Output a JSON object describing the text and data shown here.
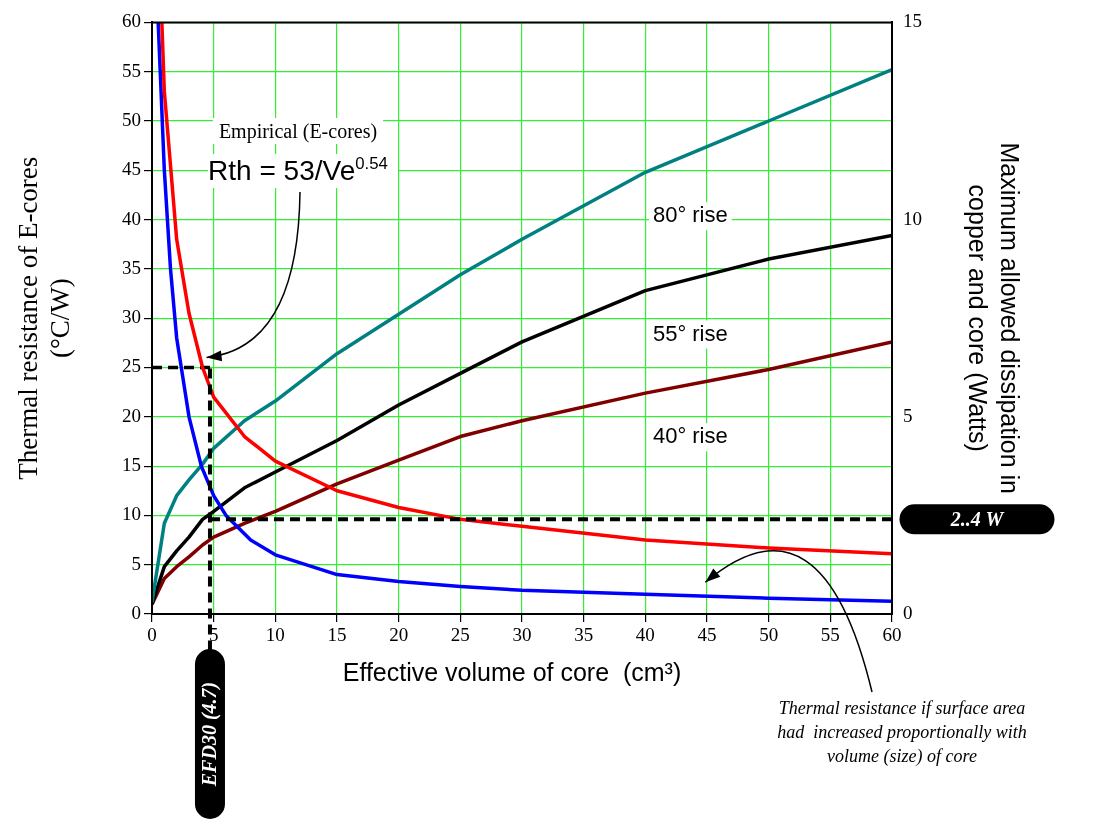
{
  "chart_data": {
    "type": "line",
    "xlabel": "Effective volume of core  (cm³)",
    "ylabel": "Thermal resistance of E-cores\n(°C/W)",
    "y2label": "Maximum allowed dissipation in\ncopper and core (Watts)",
    "x": [
      0,
      1,
      2,
      3,
      4.1,
      5,
      7.5,
      10,
      15,
      20,
      25,
      30,
      40,
      50,
      60
    ],
    "series": [
      {
        "color": "#ff0000",
        "x": [
          0.8,
          1,
          2,
          3,
          4.1,
          5,
          7.5,
          10,
          15,
          20,
          25,
          30,
          40,
          50,
          60
        ],
        "values": [
          60,
          53,
          38,
          30.5,
          25,
          22,
          18,
          15.5,
          12.5,
          10.8,
          9.6,
          8.9,
          7.5,
          6.7,
          6.1
        ]
      },
      {
        "color": "#0000ff",
        "x": [
          0.5,
          1,
          1.5,
          2,
          3,
          4,
          5,
          6,
          8,
          10,
          15,
          20,
          25,
          30,
          40,
          50,
          60
        ],
        "values": [
          60,
          45,
          35,
          28,
          20,
          15,
          12,
          10,
          7.5,
          6,
          4,
          3.3,
          2.8,
          2.4,
          2,
          1.6,
          1.3
        ]
      },
      {
        "name": "80° rise",
        "color": "#008080",
        "axis": "y2",
        "values": [
          0.3,
          2.3,
          3,
          3.4,
          3.8,
          4.2,
          4.9,
          5.4,
          6.6,
          7.6,
          8.6,
          9.5,
          11.2,
          12.5,
          13.8
        ]
      },
      {
        "name": "55° rise",
        "color": "#000000",
        "axis": "y2",
        "values": [
          0.25,
          1.2,
          1.6,
          1.95,
          2.4,
          2.6,
          3.2,
          3.6,
          4.4,
          5.3,
          6.1,
          6.9,
          8.2,
          9,
          9.6
        ]
      },
      {
        "name": "40° rise",
        "color": "#800000",
        "axis": "y2",
        "values": [
          0.25,
          0.9,
          1.2,
          1.45,
          1.75,
          1.95,
          2.3,
          2.6,
          3.3,
          3.9,
          4.5,
          4.9,
          5.6,
          6.2,
          6.9
        ]
      },
      {
        "color": "#000000",
        "x": [
          0,
          4.7
        ],
        "values": [
          25,
          25
        ],
        "line_style": "dashed"
      }
    ],
    "xlim": [
      0,
      60
    ],
    "xticks": [
      0,
      5,
      10,
      15,
      20,
      25,
      30,
      35,
      40,
      45,
      50,
      55,
      60
    ],
    "ylim": [
      0,
      60
    ],
    "yticks": [
      0,
      5,
      10,
      15,
      20,
      25,
      30,
      35,
      40,
      45,
      50,
      55,
      60
    ],
    "y2lim": [
      0,
      15
    ],
    "y2ticks": [
      0,
      5,
      10,
      15
    ],
    "grid": true,
    "marker": "none",
    "line_style": "solid",
    "ref_lines": [
      {
        "axis": "x",
        "value": 4.7,
        "label": "EFD30 (4.7)"
      },
      {
        "axis": "y2",
        "value": 2.4,
        "label": "2..4 W"
      }
    ],
    "annotations": [
      "Empirical (E-cores)",
      "Rth = 53/Ve$^{0.54}$",
      "Thermal resistance if surface area had  increased proportionally with volume (size) of core"
    ]
  }
}
